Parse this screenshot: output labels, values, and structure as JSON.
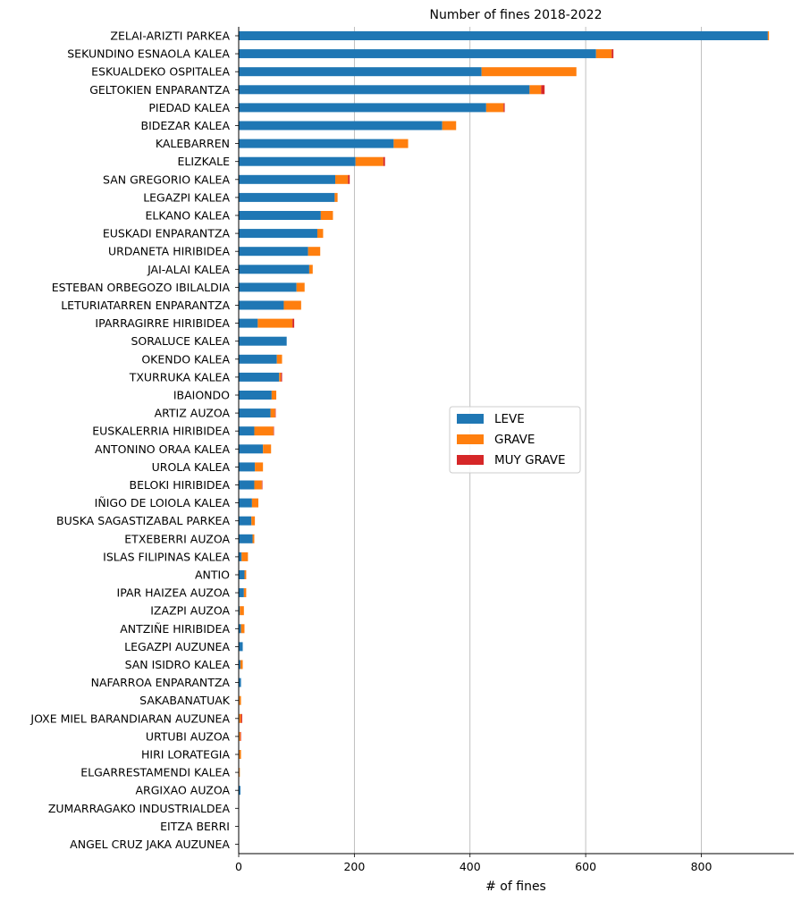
{
  "chart_data": {
    "type": "bar",
    "orientation": "horizontal",
    "stacked": true,
    "title": "Number of fines 2018-2022",
    "xlabel": "# of fines",
    "ylabel": "",
    "xlim": [
      0,
      960
    ],
    "xticks": [
      0,
      200,
      400,
      600,
      800
    ],
    "grid": "vertical",
    "legend_position": "center-right",
    "categories": [
      "ZELAI-ARIZTI PARKEA",
      "SEKUNDINO ESNAOLA KALEA",
      "ESKUALDEKO OSPITALEA",
      "GELTOKIEN ENPARANTZA",
      "PIEDAD KALEA",
      "BIDEZAR KALEA",
      "KALEBARREN",
      "ELIZKALE",
      "SAN GREGORIO KALEA",
      "LEGAZPI KALEA",
      "ELKANO KALEA",
      "EUSKADI ENPARANTZA",
      "URDANETA HIRIBIDEA",
      "JAI-ALAI KALEA",
      "ESTEBAN ORBEGOZO IBILALDIA",
      "LETURIATARREN ENPARANTZA",
      "IPARRAGIRRE HIRIBIDEA",
      "SORALUCE KALEA",
      "OKENDO KALEA",
      "TXURRUKA KALEA",
      "IBAIONDO",
      "ARTIZ AUZOA",
      "EUSKALERRIA HIRIBIDEA",
      "ANTONINO ORAA KALEA",
      "UROLA KALEA",
      "BELOKI HIRIBIDEA",
      "IÑIGO DE LOIOLA KALEA",
      "BUSKA SAGASTIZABAL PARKEA",
      "ETXEBERRI AUZOA",
      "ISLAS FILIPINAS KALEA",
      "ANTIO",
      "IPAR HAIZEA AUZOA",
      "IZAZPI AUZOA",
      "ANTZIÑE HIRIBIDEA",
      "LEGAZPI AUZUNEA",
      "SAN ISIDRO KALEA",
      "NAFARROA ENPARANTZA",
      "SAKABANATUAK",
      "JOXE MIEL BARANDIARAN AUZUNEA",
      "URTUBI AUZOA",
      "HIRI LORATEGIA",
      "ELGARRESTAMENDI KALEA",
      "ARGIXAO AUZOA",
      "ZUMARRAGAKO INDUSTRIALDEA",
      "EITZA BERRI",
      "ANGEL CRUZ JAKA AUZUNEA"
    ],
    "series": [
      {
        "name": "LEVE",
        "color": "#1f77b4",
        "values": [
          915,
          618,
          420,
          503,
          428,
          352,
          268,
          202,
          167,
          166,
          142,
          136,
          120,
          122,
          100,
          78,
          33,
          83,
          66,
          70,
          57,
          55,
          27,
          42,
          28,
          27,
          23,
          22,
          24,
          5,
          10,
          9,
          2,
          4,
          7,
          3,
          4,
          1,
          1,
          1,
          1,
          1,
          3,
          0,
          0,
          0
        ]
      },
      {
        "name": "GRAVE",
        "color": "#ff7f0e",
        "values": [
          2,
          27,
          164,
          20,
          30,
          24,
          25,
          48,
          22,
          5,
          21,
          10,
          21,
          6,
          14,
          30,
          60,
          0,
          9,
          3,
          8,
          8,
          33,
          14,
          14,
          13,
          11,
          6,
          3,
          11,
          3,
          4,
          7,
          6,
          0,
          4,
          0,
          3,
          3,
          2,
          3,
          1,
          0,
          0,
          0,
          0
        ]
      },
      {
        "name": "MUY GRAVE",
        "color": "#d62728",
        "values": [
          0,
          3,
          0,
          6,
          2,
          0,
          0,
          3,
          3,
          0,
          0,
          0,
          0,
          0,
          0,
          0,
          3,
          0,
          0,
          2,
          0,
          1,
          1,
          0,
          0,
          1,
          0,
          0,
          0,
          0,
          0,
          0,
          0,
          0,
          0,
          0,
          0,
          0,
          2,
          1,
          0,
          0,
          0,
          0,
          0,
          0
        ]
      }
    ]
  }
}
